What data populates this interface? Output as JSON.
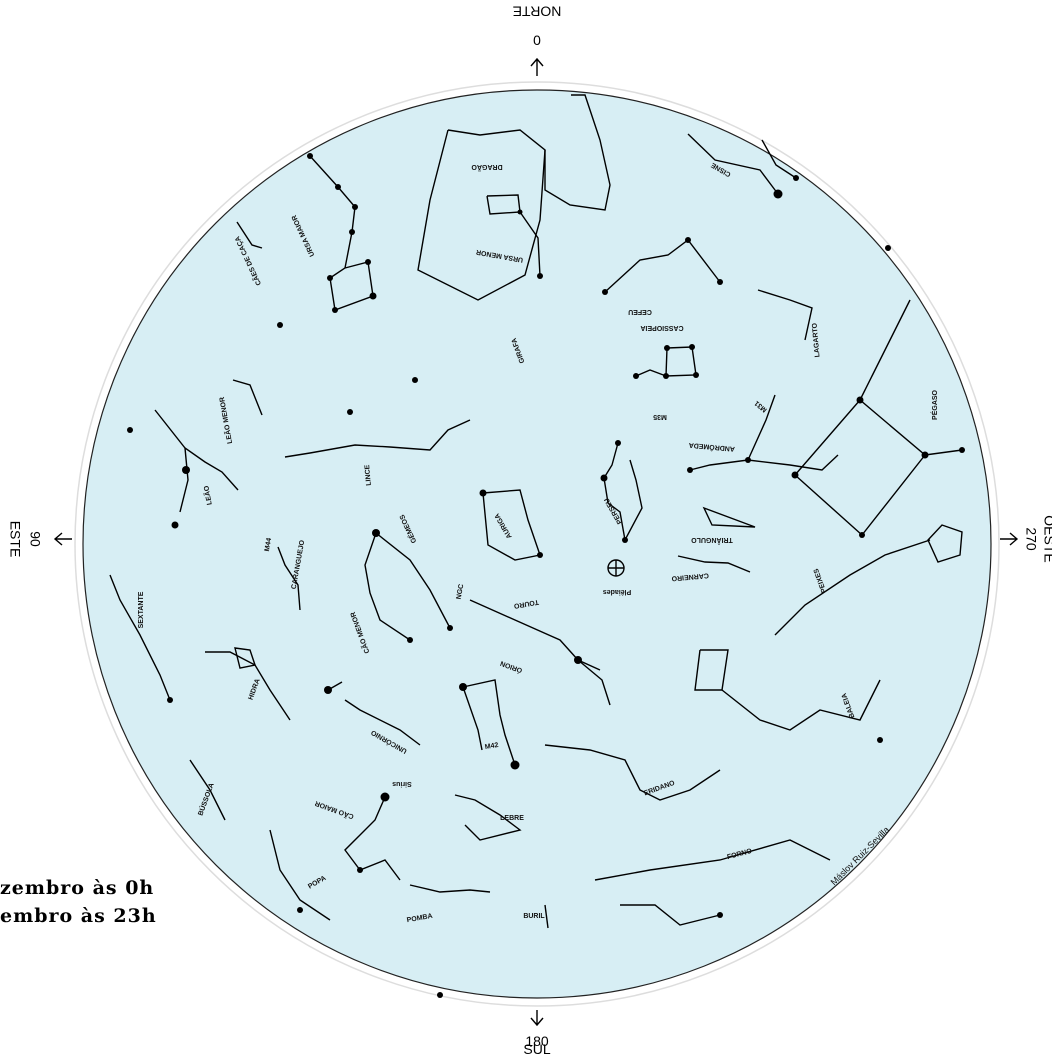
{
  "colors": {
    "sky": "#d7eef4",
    "ink": "#000000"
  },
  "directions": {
    "north": {
      "degrees": "0",
      "name": "NORTE"
    },
    "east": {
      "degrees": "90",
      "name": "ESTE"
    },
    "west": {
      "degrees": "270",
      "name": "OESTE"
    },
    "south": {
      "degrees": "180",
      "name": "SUL"
    }
  },
  "signature": "Máslov Ruiz-Sevilla",
  "caption": {
    "line1": "zembro às 0h",
    "line2": "embro às 23h"
  },
  "constellations": [
    "URSA MAIOR",
    "CÃES DE CAÇA",
    "DRAGÃO",
    "URSA MENOR",
    "CEFEU",
    "CISNE",
    "GIRAFA",
    "CASSIOPEIA",
    "LAGARTO",
    "LEÃO MENOR",
    "LINCE",
    "ANDRÔMEDA",
    "PERSEU",
    "AURIGA",
    "PÉGASO",
    "TRIÂNGULO",
    "CARANGUEJO",
    "CARNEIRO",
    "LEÃO",
    "GÉMEOS",
    "PEIXES",
    "TOURO",
    "CÃO MENOR",
    "HIDRA",
    "SEXTANTE",
    "ÓRION",
    "BALEIA",
    "UNICÓRNIO",
    "ERIDANO",
    "CÃO MAIOR",
    "LEBRE",
    "FORNO",
    "BÚSSOLA",
    "POPA",
    "POMBA",
    "BURIL",
    "Plêiades",
    "Sirius",
    "M42",
    "M44",
    "NGC",
    "M31",
    "M35"
  ]
}
